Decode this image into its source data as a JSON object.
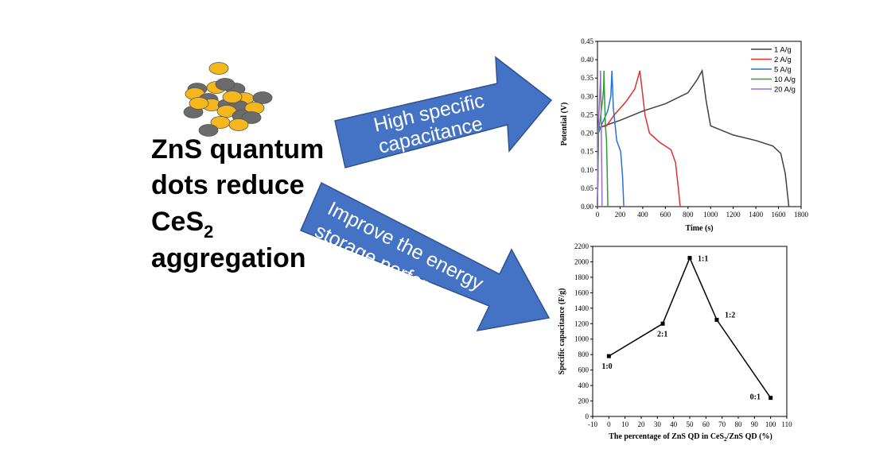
{
  "headline": {
    "line1": "ZnS quantum",
    "line2": "dots reduce",
    "line3_main": "CeS",
    "line3_sub": "2",
    "line4": "aggregation"
  },
  "arrows": {
    "upper": {
      "line1": "High specific",
      "line2": "capacitance",
      "color": "#4472c4"
    },
    "lower": {
      "line1": "Improve the energy",
      "line2": "storage performance",
      "color": "#4472c4"
    }
  },
  "particles": {
    "gold_color": "#f5b71c",
    "gray_color": "#6b6b6b"
  },
  "chart_data": [
    {
      "type": "line",
      "xlabel": "Time (s)",
      "ylabel": "Potential (V)",
      "xlim": [
        0,
        1800
      ],
      "ylim": [
        0,
        0.45
      ],
      "xticks": [
        0,
        200,
        400,
        600,
        800,
        1000,
        1200,
        1400,
        1600,
        1800
      ],
      "yticks": [
        0.0,
        0.05,
        0.1,
        0.15,
        0.2,
        0.25,
        0.3,
        0.35,
        0.4,
        0.45
      ],
      "legend": "top-right",
      "series": [
        {
          "name": "1 A/g",
          "color": "#404040",
          "x": [
            0,
            10,
            60,
            200,
            400,
            600,
            800,
            880,
            925,
            960,
            1000,
            1200,
            1400,
            1550,
            1620,
            1660,
            1685,
            1692
          ],
          "y": [
            0,
            0.215,
            0.22,
            0.235,
            0.26,
            0.28,
            0.31,
            0.345,
            0.37,
            0.29,
            0.22,
            0.195,
            0.18,
            0.165,
            0.145,
            0.09,
            0.02,
            0
          ]
        },
        {
          "name": "2 A/g",
          "color": "#e03030",
          "x": [
            0,
            10,
            80,
            150,
            250,
            330,
            375,
            390,
            420,
            460,
            550,
            650,
            690,
            715,
            728,
            732
          ],
          "y": [
            0,
            0.215,
            0.22,
            0.25,
            0.285,
            0.32,
            0.37,
            0.33,
            0.25,
            0.2,
            0.175,
            0.155,
            0.12,
            0.05,
            0.01,
            0
          ]
        },
        {
          "name": "5 A/g",
          "color": "#2a6fdb",
          "x": [
            0,
            8,
            40,
            90,
            118,
            128,
            140,
            170,
            205,
            222,
            230,
            233
          ],
          "y": [
            0,
            0.2,
            0.225,
            0.26,
            0.3,
            0.37,
            0.27,
            0.18,
            0.15,
            0.08,
            0.02,
            0
          ]
        },
        {
          "name": "10 A/g",
          "color": "#2ca02c",
          "x": [
            0,
            6,
            25,
            45,
            54,
            58,
            62,
            70,
            80,
            86,
            90,
            92
          ],
          "y": [
            0,
            0.2,
            0.24,
            0.29,
            0.32,
            0.37,
            0.3,
            0.22,
            0.18,
            0.1,
            0.03,
            0
          ]
        },
        {
          "name": "20 A/g",
          "color": "#9b6bd0",
          "x": [
            0,
            4,
            12,
            20,
            25,
            27,
            30,
            34,
            38,
            40,
            41
          ],
          "y": [
            0,
            0.2,
            0.25,
            0.3,
            0.34,
            0.37,
            0.3,
            0.2,
            0.1,
            0.03,
            0
          ]
        }
      ]
    },
    {
      "type": "line",
      "xlabel_main": "The percentage of ZnS QD in CeS",
      "xlabel_sub": "2",
      "xlabel_end": "/ZnS QD (%)",
      "ylabel": "Specific capacitance (F/g)",
      "xlim": [
        -10,
        110
      ],
      "ylim": [
        0,
        2200
      ],
      "xticks": [
        -10,
        0,
        10,
        20,
        30,
        40,
        50,
        60,
        70,
        80,
        90,
        100,
        110
      ],
      "yticks": [
        0,
        200,
        400,
        600,
        800,
        1000,
        1200,
        1400,
        1600,
        1800,
        2000,
        2200
      ],
      "series": [
        {
          "color": "#000000",
          "x": [
            0,
            33.3,
            50,
            66.7,
            100
          ],
          "y": [
            780,
            1200,
            2050,
            1250,
            240
          ],
          "labels": [
            "1:0",
            "2:1",
            "1:1",
            "1:2",
            "0:1"
          ]
        }
      ]
    }
  ]
}
